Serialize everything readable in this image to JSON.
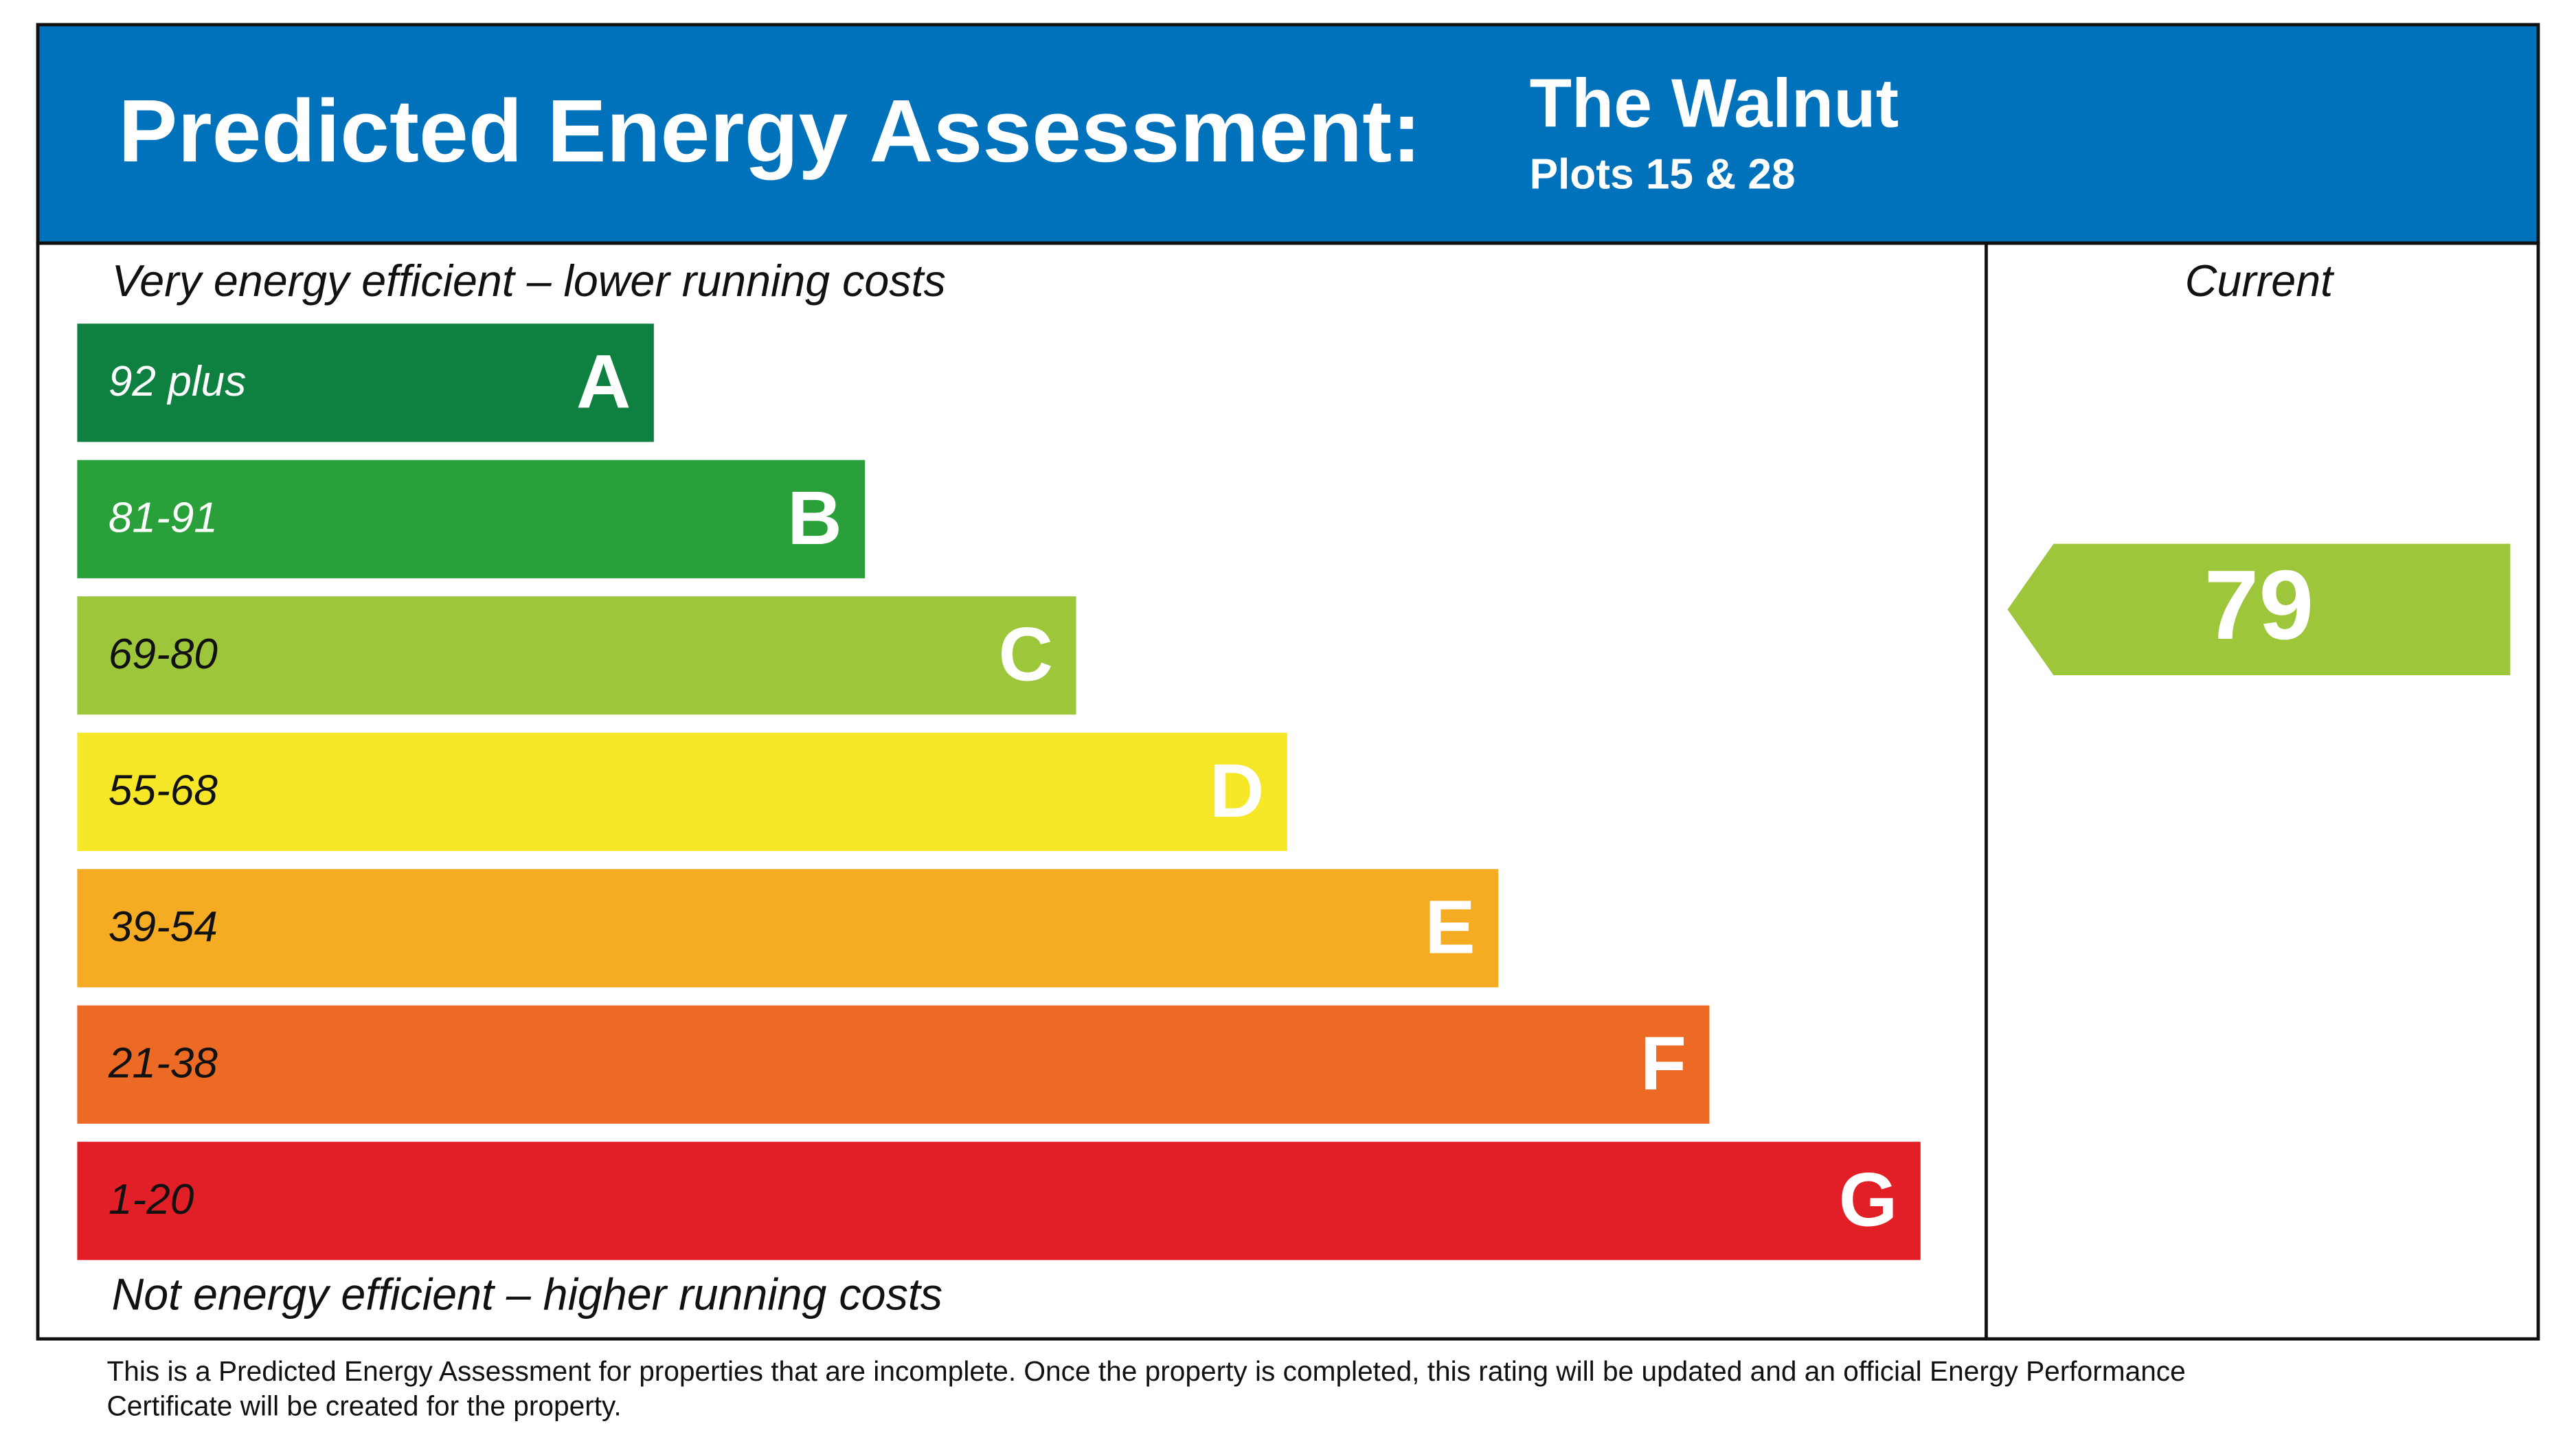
{
  "header": {
    "title": "Predicted Energy Assessment:",
    "property_name": "The Walnut",
    "plots": "Plots 15 & 28",
    "color": "#0072bb"
  },
  "top_note": "Very energy efficient – lower running costs",
  "bottom_note": "Not energy efficient – higher running costs",
  "bands": [
    {
      "range": "92 plus",
      "letter": "A",
      "color": "#0e8140",
      "text_color": "#ffffff"
    },
    {
      "range": "81-91",
      "letter": "B",
      "color": "#2aa03a",
      "text_color": "#ffffff"
    },
    {
      "range": "69-80",
      "letter": "C",
      "color": "#9dc63b",
      "text_color": "#111111"
    },
    {
      "range": "55-68",
      "letter": "D",
      "color": "#f6e829",
      "text_color": "#111111"
    },
    {
      "range": "39-54",
      "letter": "E",
      "color": "#f5ac22",
      "text_color": "#111111"
    },
    {
      "range": "21-38",
      "letter": "F",
      "color": "#ec6a24",
      "text_color": "#111111"
    },
    {
      "range": "1-20",
      "letter": "G",
      "color": "#e21e26",
      "text_color": "#111111"
    }
  ],
  "current": {
    "label": "Current",
    "value": 79,
    "color": "#9dc63b"
  },
  "footer": [
    "This is a Predicted Energy Assessment for properties that are incomplete. Once the property is completed, this rating will be updated and an official Energy Performance",
    "Certificate will be created for the property."
  ]
}
